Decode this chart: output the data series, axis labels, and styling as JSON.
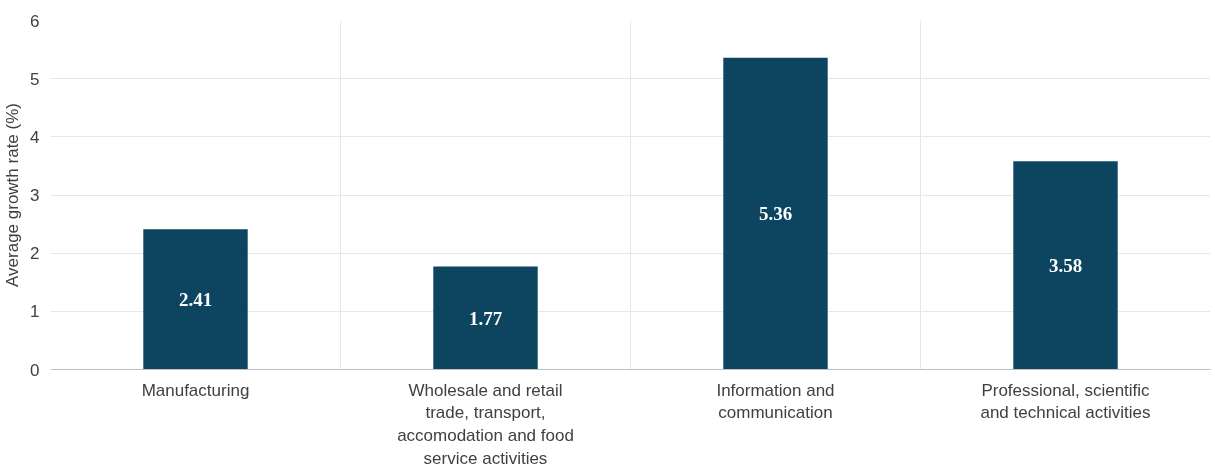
{
  "chart_data": {
    "type": "bar",
    "ylabel": "Average growth rate (%)",
    "categories": [
      "Manufacturing",
      "Wholesale and retail trade, transport, accomodation and food service activities",
      "Information and communication",
      "Professional, scientific and technical activities"
    ],
    "values": [
      2.41,
      1.77,
      5.36,
      3.58
    ],
    "color": "#0d4460",
    "ylim": [
      0,
      6
    ],
    "yticks": [
      0,
      1,
      2,
      3,
      4,
      5,
      6
    ],
    "grid": true,
    "data_labels": true
  }
}
